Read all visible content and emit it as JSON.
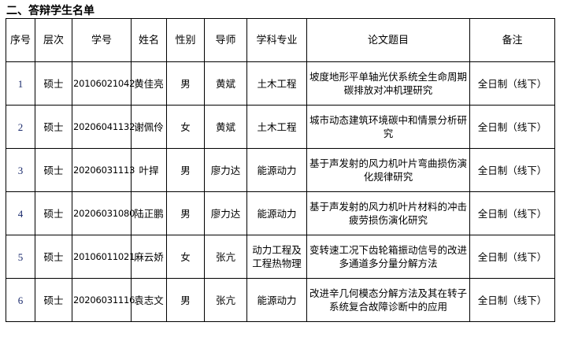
{
  "title": "二、答辩学生名单",
  "headers": [
    "序号",
    "层次",
    "学号",
    "姓名",
    "性别",
    "导师",
    "学科专业",
    "论文题目",
    "备注"
  ],
  "rows": [
    {
      "no": "1",
      "level": "硕士",
      "id": "20106021042",
      "name": "黄佳亮",
      "gender": "男",
      "advisor": "黄斌",
      "major": "土木工程",
      "thesis": "坡度地形平单轴光伏系统全生命周期碳排放对冲机理研究",
      "note": "全日制（线下）"
    },
    {
      "no": "2",
      "level": "硕士",
      "id": "20206041132",
      "name": "谢佩伶",
      "gender": "女",
      "advisor": "黄斌",
      "major": "土木工程",
      "thesis": "城市动态建筑环境碳中和情景分析研究",
      "note": "全日制（线下）"
    },
    {
      "no": "3",
      "level": "硕士",
      "id": "20206031113",
      "name": "叶捍",
      "gender": "男",
      "advisor": "廖力达",
      "major": "能源动力",
      "thesis": "基于声发射的风力机叶片弯曲损伤演化规律研究",
      "note": "全日制（线下）"
    },
    {
      "no": "4",
      "level": "硕士",
      "id": "20206031080",
      "name": "陆正鹏",
      "gender": "男",
      "advisor": "廖力达",
      "major": "能源动力",
      "thesis": "基于声发射的风力机叶片材料的冲击疲劳损伤演化研究",
      "note": "全日制（线下）"
    },
    {
      "no": "5",
      "level": "硕士",
      "id": "20106011021",
      "name": "麻云娇",
      "gender": "女",
      "advisor": "张亢",
      "major": "动力工程及工程热物理",
      "thesis": "变转速工况下齿轮箱振动信号的改进多通道多分量分解方法",
      "note": "全日制（线下）"
    },
    {
      "no": "6",
      "level": "硕士",
      "id": "20206031116",
      "name": "袁志文",
      "gender": "男",
      "advisor": "张亢",
      "major": "能源动力",
      "thesis": "改进辛几何模态分解方法及其在转子系统复合故障诊断中的应用",
      "note": "全日制（线下）"
    }
  ]
}
